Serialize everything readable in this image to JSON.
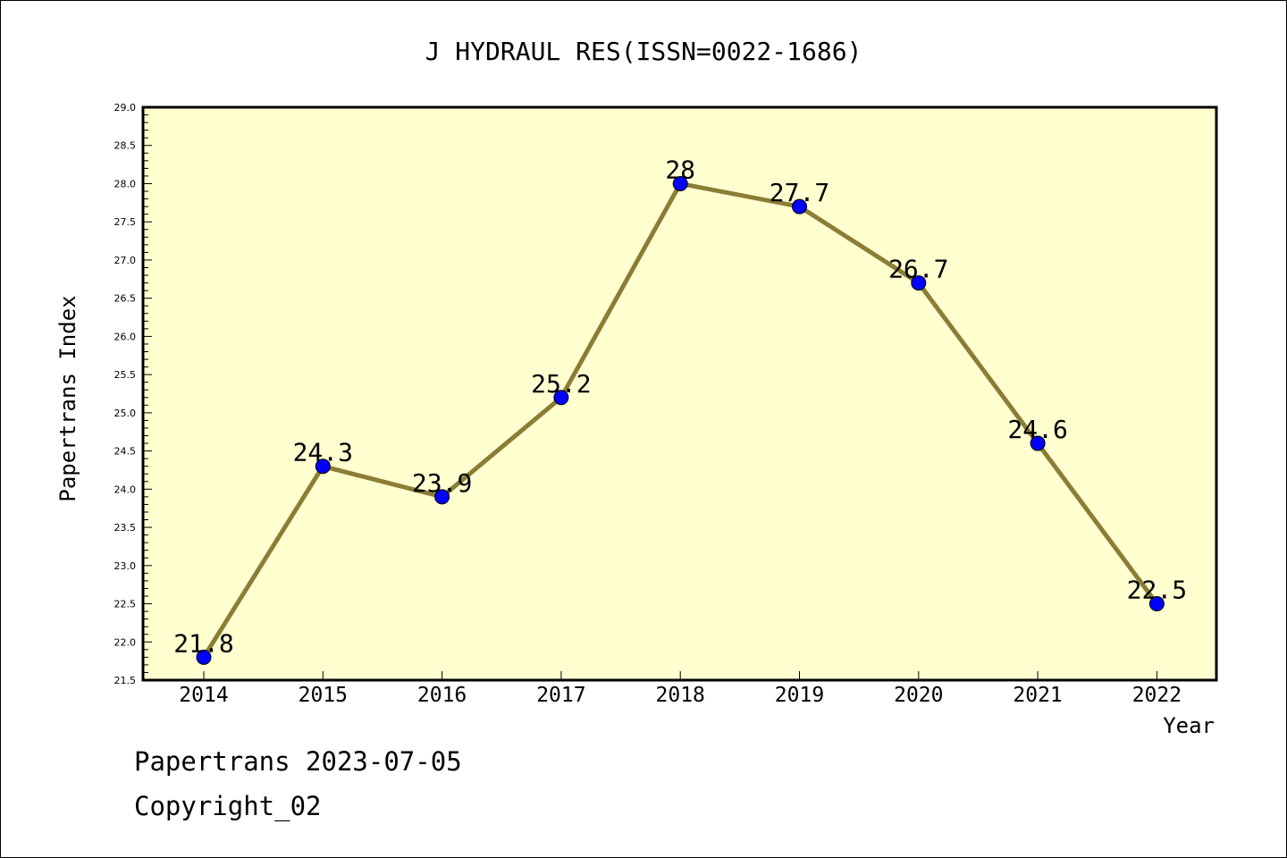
{
  "chart_data": {
    "type": "line",
    "title": "J HYDRAUL RES(ISSN=0022-1686)",
    "xlabel": "Year",
    "ylabel": "Papertrans Index",
    "categories": [
      "2014",
      "2015",
      "2016",
      "2017",
      "2018",
      "2019",
      "2020",
      "2021",
      "2022"
    ],
    "series": [
      {
        "values": [
          21.8,
          24.3,
          23.9,
          25.2,
          28.0,
          27.7,
          26.7,
          24.6,
          22.5
        ]
      }
    ],
    "data_labels": [
      "21.8",
      "24.3",
      "23.9",
      "25.2",
      "28",
      "27.7",
      "26.7",
      "24.6",
      "22.5"
    ],
    "yticks": [
      "21.5",
      "22.0",
      "22.5",
      "23.0",
      "23.5",
      "24.0",
      "24.5",
      "25.0",
      "25.5",
      "26.0",
      "26.5",
      "27.0",
      "27.5",
      "28.0",
      "28.5",
      "29.0"
    ],
    "ylim": [
      21.5,
      29.0
    ],
    "grid": false,
    "colors": {
      "plot_background": "#ffffd0",
      "line": "#8b7d35",
      "marker": "#0000ff"
    }
  },
  "footer": {
    "source": "Papertrans 2023-07-05",
    "copyright": "Copyright_02"
  }
}
